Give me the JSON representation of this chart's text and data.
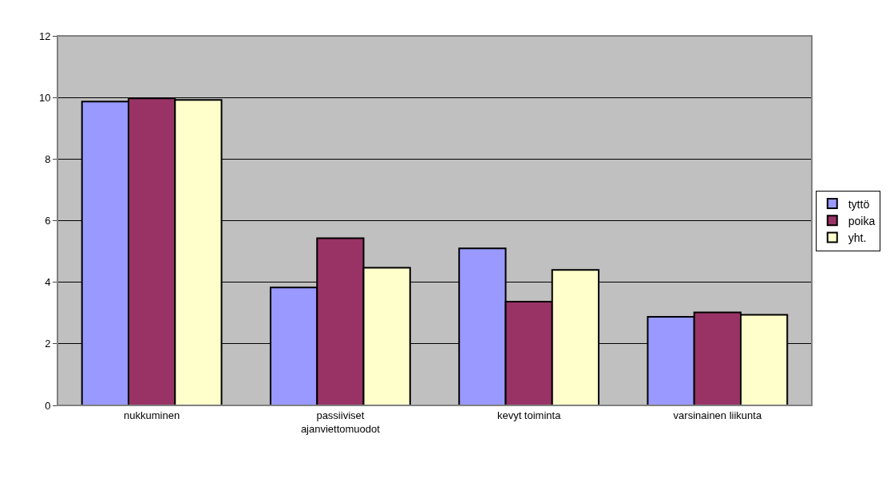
{
  "chart_data": {
    "type": "bar",
    "categories": [
      "nukkuminen",
      "passiiviset\najanviettomuodot",
      "kevyt toiminta",
      "varsinainen liikunta"
    ],
    "series": [
      {
        "name": "tyttö",
        "color": "#9999ff",
        "values": [
          9.87,
          3.83,
          5.1,
          2.88
        ]
      },
      {
        "name": "poika",
        "color": "#993366",
        "values": [
          9.97,
          5.43,
          3.37,
          3.02
        ]
      },
      {
        "name": "yht.",
        "color": "#ffffcc",
        "values": [
          9.92,
          4.47,
          4.4,
          2.94
        ]
      }
    ],
    "ylim": [
      0,
      12
    ],
    "yticks": [
      0,
      2,
      4,
      6,
      8,
      10,
      12
    ],
    "grid": "y",
    "legend": "right"
  }
}
